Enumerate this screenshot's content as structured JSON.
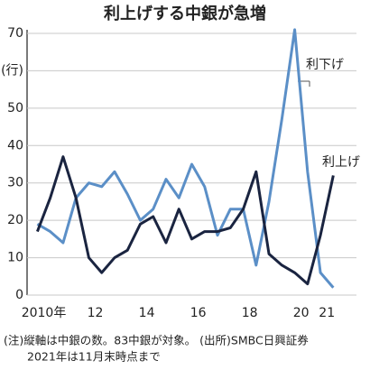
{
  "chart_data": {
    "type": "line",
    "title": "利上げする中銀が急増",
    "x": [
      2010,
      2010.5,
      2011,
      2011.5,
      2012,
      2012.5,
      2013,
      2013.5,
      2014,
      2014.5,
      2015,
      2015.5,
      2016,
      2016.5,
      2017,
      2017.5,
      2018,
      2018.5,
      2019,
      2019.5,
      2020,
      2020.5,
      2021,
      2021.5
    ],
    "series": [
      {
        "name": "利下げ",
        "color": "#5b8fc7",
        "values": [
          19,
          17,
          14,
          26,
          30,
          29,
          33,
          27,
          20,
          23,
          31,
          26,
          35,
          29,
          16,
          23,
          23,
          8,
          25,
          47,
          71,
          33,
          6,
          2
        ]
      },
      {
        "name": "利上げ",
        "color": "#1a2440",
        "values": [
          17,
          26,
          37,
          26,
          10,
          6,
          10,
          12,
          19,
          21,
          14,
          23,
          15,
          17,
          17,
          18,
          23,
          33,
          11,
          8,
          6,
          3,
          16,
          32
        ]
      }
    ],
    "xlim": [
      2009.6,
      2022.4
    ],
    "xticks": [
      {
        "value": 2010.25,
        "label": "2010年"
      },
      {
        "value": 2012.25,
        "label": "12"
      },
      {
        "value": 2014.25,
        "label": "14"
      },
      {
        "value": 2016.25,
        "label": "16"
      },
      {
        "value": 2018.25,
        "label": "18"
      },
      {
        "value": 2020.25,
        "label": "20"
      },
      {
        "value": 2021.25,
        "label": "21"
      }
    ],
    "ylim": [
      0,
      70
    ],
    "yticks": [
      0,
      10,
      20,
      30,
      40,
      50,
      {
        "value": 60,
        "label": "(行)"
      },
      70
    ],
    "grid": true,
    "notes": [
      "(注)縦軸は中銀の数。83中銀が対象。 (出所)SMBC日興証券",
      "2021年は11月末時点まで"
    ]
  }
}
